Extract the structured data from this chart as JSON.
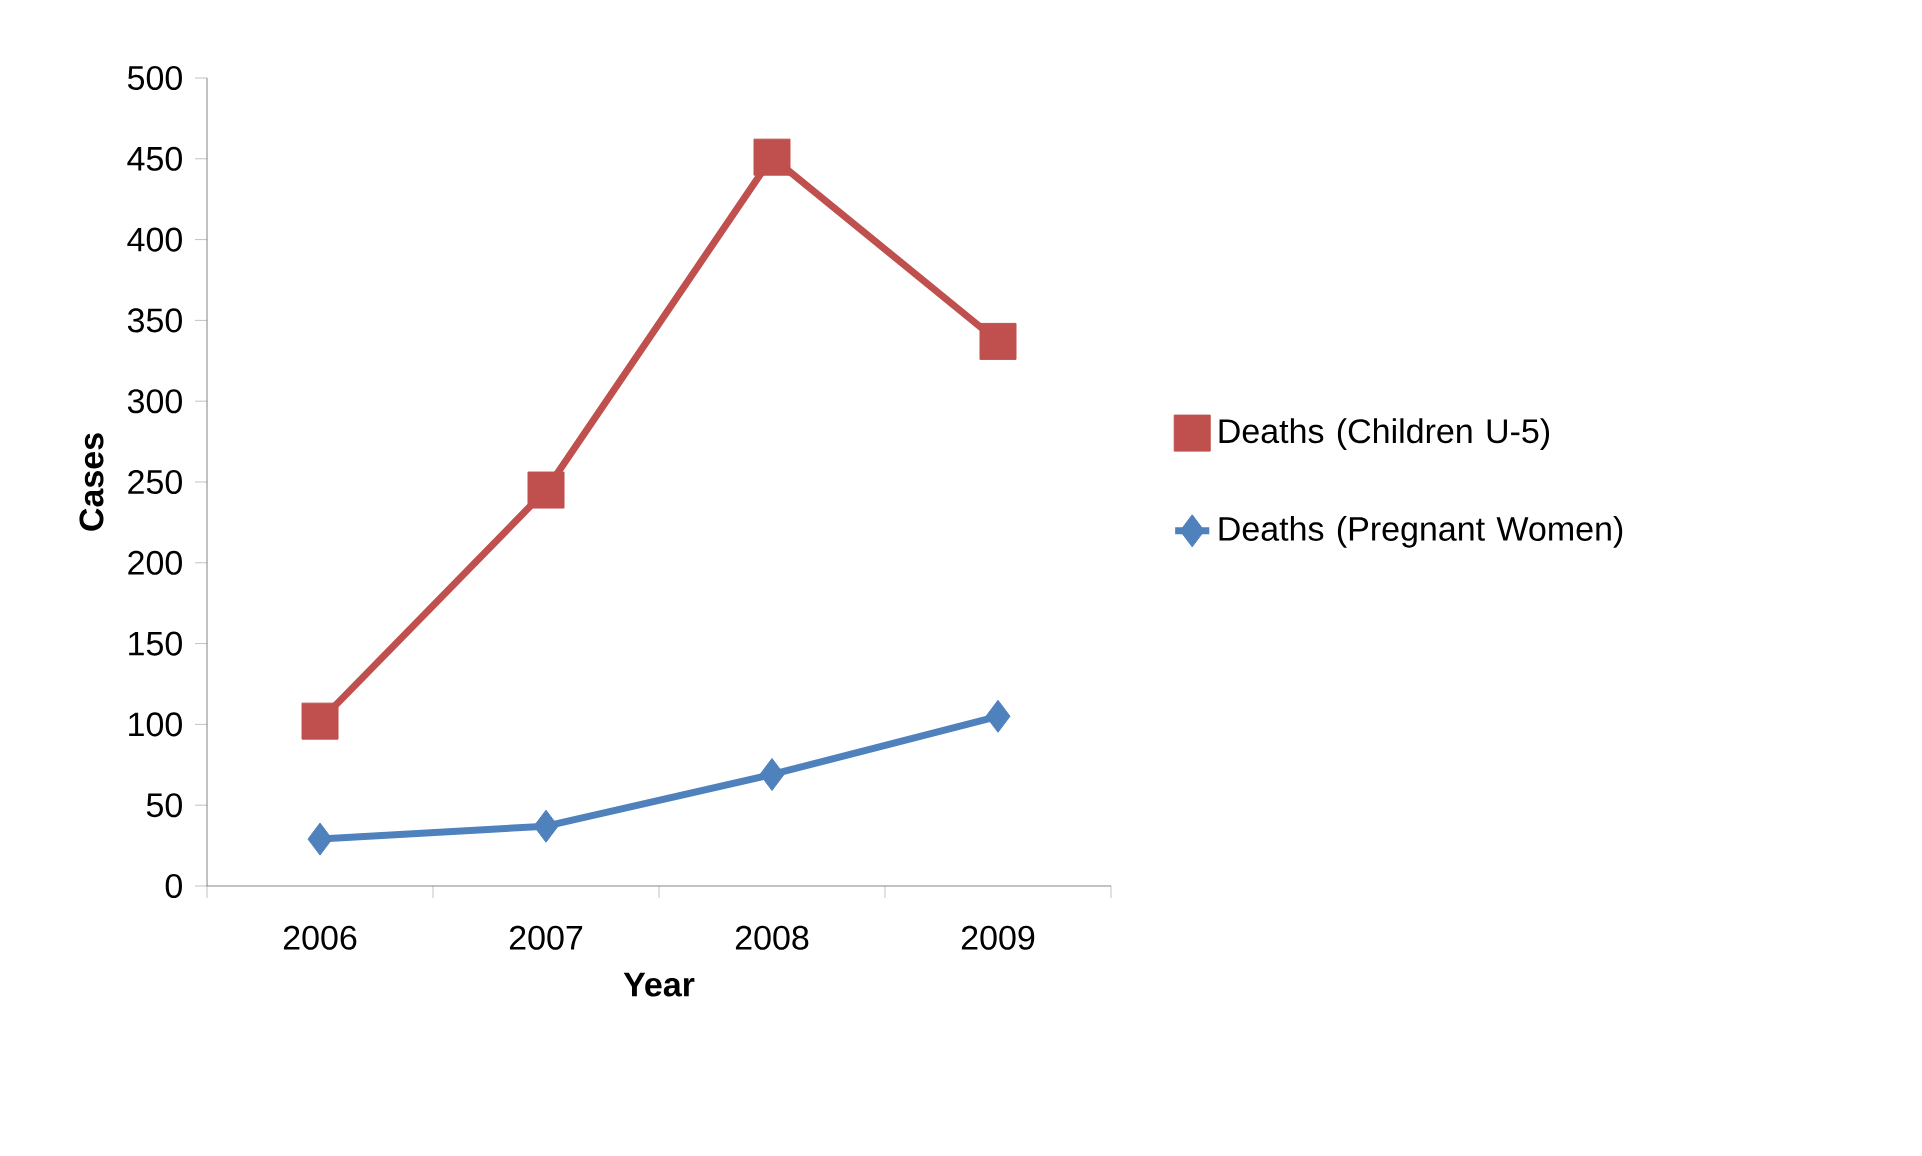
{
  "chart_data": {
    "type": "line",
    "xlabel": "Year",
    "ylabel": "Cases",
    "categories": [
      "2006",
      "2007",
      "2008",
      "2009"
    ],
    "series": [
      {
        "name": "Deaths (Children U-5)",
        "color": "#c0504d",
        "marker": "square",
        "values": [
          102,
          245,
          451,
          337
        ]
      },
      {
        "name": "Deaths (Pregnant Women)",
        "color": "#4f81bd",
        "marker": "diamond",
        "values": [
          29,
          37,
          69,
          105
        ]
      }
    ],
    "ylim": [
      0,
      500
    ],
    "yticks": [
      0,
      50,
      100,
      150,
      200,
      250,
      300,
      350,
      400,
      450,
      500
    ],
    "grid": false,
    "legend": "right",
    "line_style": "solid"
  }
}
